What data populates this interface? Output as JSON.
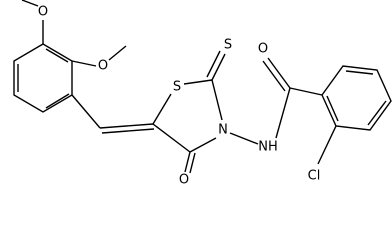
{
  "atoms": {
    "methoxy_o_top": "O",
    "methoxy_o_2": "O",
    "ring_s": "S",
    "thioxo_s": "S",
    "amide_o": "O",
    "ring_n": "N",
    "amide_nh": "NH",
    "ring_o": "O",
    "chloro": "Cl"
  }
}
